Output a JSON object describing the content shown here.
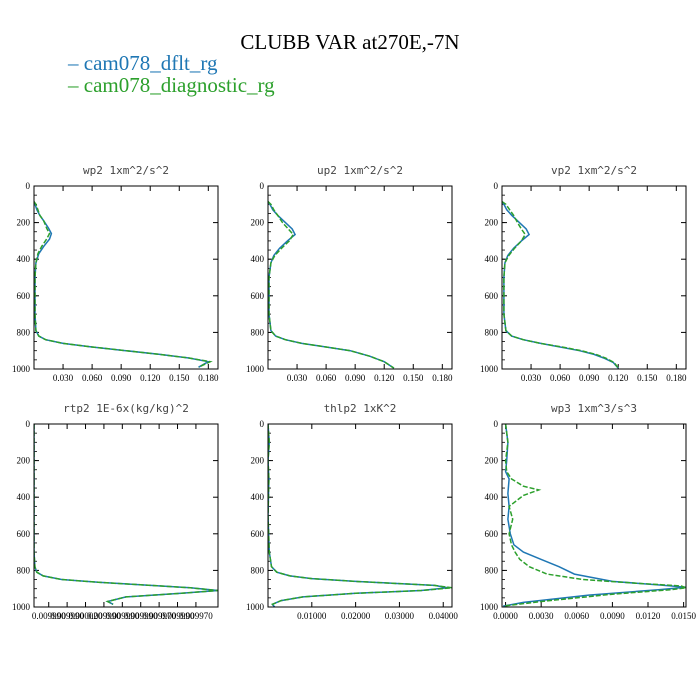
{
  "figure": {
    "title": "CLUBB VAR at270E,-7N",
    "legend": [
      {
        "name": "cam078_dflt_rg",
        "color": "#1f77b4"
      },
      {
        "name": "cam078_diagnostic_rg",
        "color": "#2ca02c"
      }
    ]
  },
  "chart_data": [
    {
      "type": "line",
      "title": "wp2   1xm^2/s^2",
      "xlim": [
        0,
        0.19
      ],
      "ylim": [
        1000,
        0
      ],
      "xticks": [
        0.03,
        0.06,
        0.09,
        0.12,
        0.15,
        0.18
      ],
      "xtick_labels": [
        "0.030",
        "0.060",
        "0.090",
        "0.120",
        "0.150",
        "0.180"
      ],
      "yticks": [
        0,
        200,
        400,
        600,
        800,
        1000
      ],
      "ytick_labels": [
        "0",
        "200",
        "400",
        "600",
        "800",
        "1000"
      ],
      "series": [
        {
          "name": "cam078_dflt_rg",
          "color": "#1f77b4",
          "dash": false,
          "x": [
            0.0,
            0.001,
            0.003,
            0.006,
            0.01,
            0.015,
            0.018,
            0.016,
            0.01,
            0.005,
            0.002,
            0.001,
            0.001,
            0.002,
            0.005,
            0.012,
            0.03,
            0.06,
            0.095,
            0.13,
            0.16,
            0.18,
            0.17
          ],
          "y": [
            85,
            100,
            130,
            160,
            190,
            230,
            260,
            290,
            330,
            370,
            420,
            500,
            700,
            790,
            820,
            840,
            860,
            880,
            900,
            920,
            940,
            960,
            990
          ]
        },
        {
          "name": "cam078_diagnostic_rg",
          "color": "#2ca02c",
          "dash": true,
          "x": [
            0.0,
            0.002,
            0.004,
            0.006,
            0.01,
            0.013,
            0.016,
            0.013,
            0.008,
            0.004,
            0.002,
            0.001,
            0.001,
            0.002,
            0.005,
            0.012,
            0.03,
            0.06,
            0.095,
            0.13,
            0.16,
            0.182,
            0.17
          ],
          "y": [
            85,
            100,
            130,
            160,
            190,
            230,
            260,
            290,
            330,
            370,
            420,
            500,
            700,
            790,
            820,
            840,
            860,
            880,
            900,
            920,
            940,
            960,
            990
          ]
        }
      ]
    },
    {
      "type": "line",
      "title": "up2   1xm^2/s^2",
      "xlim": [
        0,
        0.19
      ],
      "ylim": [
        1000,
        0
      ],
      "xticks": [
        0.03,
        0.06,
        0.09,
        0.12,
        0.15,
        0.18
      ],
      "xtick_labels": [
        "0.030",
        "0.060",
        "0.090",
        "0.120",
        "0.150",
        "0.180"
      ],
      "yticks": [
        0,
        200,
        400,
        600,
        800,
        1000
      ],
      "ytick_labels": [
        "0",
        "200",
        "400",
        "600",
        "800",
        "1000"
      ],
      "series": [
        {
          "name": "cam078_dflt_rg",
          "color": "#1f77b4",
          "dash": false,
          "x": [
            0.0,
            0.002,
            0.005,
            0.01,
            0.018,
            0.025,
            0.028,
            0.02,
            0.012,
            0.006,
            0.003,
            0.001,
            0.001,
            0.003,
            0.008,
            0.018,
            0.035,
            0.06,
            0.085,
            0.105,
            0.12,
            0.13
          ],
          "y": [
            85,
            100,
            130,
            160,
            200,
            235,
            265,
            300,
            340,
            380,
            420,
            500,
            700,
            790,
            820,
            840,
            860,
            880,
            900,
            930,
            960,
            995
          ]
        },
        {
          "name": "cam078_diagnostic_rg",
          "color": "#2ca02c",
          "dash": true,
          "x": [
            0.0,
            0.003,
            0.006,
            0.01,
            0.015,
            0.021,
            0.026,
            0.022,
            0.014,
            0.007,
            0.003,
            0.001,
            0.001,
            0.003,
            0.008,
            0.018,
            0.035,
            0.06,
            0.085,
            0.105,
            0.12,
            0.13
          ],
          "y": [
            85,
            100,
            130,
            160,
            200,
            235,
            265,
            300,
            340,
            380,
            420,
            500,
            700,
            790,
            820,
            840,
            860,
            880,
            900,
            930,
            960,
            995
          ]
        }
      ]
    },
    {
      "type": "line",
      "title": "vp2   1xm^2/s^2",
      "xlim": [
        0,
        0.19
      ],
      "ylim": [
        1000,
        0
      ],
      "xticks": [
        0.03,
        0.06,
        0.09,
        0.12,
        0.15,
        0.18
      ],
      "xtick_labels": [
        "0.030",
        "0.060",
        "0.090",
        "0.120",
        "0.150",
        "0.180"
      ],
      "yticks": [
        0,
        200,
        400,
        600,
        800,
        1000
      ],
      "ytick_labels": [
        "0",
        "200",
        "400",
        "600",
        "800",
        "1000"
      ],
      "series": [
        {
          "name": "cam078_dflt_rg",
          "color": "#1f77b4",
          "dash": false,
          "x": [
            0.0,
            0.002,
            0.005,
            0.01,
            0.018,
            0.025,
            0.028,
            0.02,
            0.012,
            0.006,
            0.003,
            0.002,
            0.002,
            0.004,
            0.01,
            0.022,
            0.04,
            0.06,
            0.08,
            0.095,
            0.105,
            0.115,
            0.12
          ],
          "y": [
            85,
            100,
            130,
            160,
            200,
            235,
            265,
            300,
            340,
            380,
            420,
            500,
            700,
            790,
            820,
            840,
            860,
            880,
            900,
            920,
            940,
            965,
            995
          ]
        },
        {
          "name": "cam078_diagnostic_rg",
          "color": "#2ca02c",
          "dash": true,
          "x": [
            0.0,
            0.004,
            0.008,
            0.012,
            0.016,
            0.02,
            0.024,
            0.02,
            0.013,
            0.007,
            0.003,
            0.002,
            0.002,
            0.004,
            0.01,
            0.022,
            0.04,
            0.062,
            0.082,
            0.097,
            0.107,
            0.116,
            0.12
          ],
          "y": [
            85,
            100,
            130,
            160,
            200,
            235,
            265,
            300,
            340,
            380,
            420,
            500,
            700,
            790,
            820,
            840,
            860,
            880,
            900,
            920,
            940,
            965,
            995
          ]
        }
      ]
    },
    {
      "type": "line",
      "title": "rtp2   1E-6x(kg/kg)^2",
      "xlim": [
        0,
        1
      ],
      "ylim": [
        1000,
        0
      ],
      "xticks": [
        0.08,
        0.18,
        0.28,
        0.38,
        0.48,
        0.58,
        0.68,
        0.78,
        0.88
      ],
      "xtick_labels": [
        "0.009990",
        "0.009990",
        "0.000020",
        "0.009990",
        "0.009990",
        "0.009990",
        "0.009970",
        "0.009990",
        "0.009970"
      ],
      "yticks": [
        0,
        200,
        400,
        600,
        800,
        1000
      ],
      "ytick_labels": [
        "0",
        "200",
        "400",
        "600",
        "800",
        "1000"
      ],
      "series": [
        {
          "name": "cam078_dflt_rg",
          "color": "#1f77b4",
          "dash": false,
          "x": [
            0.0,
            0.0,
            0.0,
            0.005,
            0.015,
            0.05,
            0.15,
            0.35,
            0.6,
            0.85,
            1.0,
            0.8,
            0.5,
            0.4,
            0.43
          ],
          "y": [
            0,
            300,
            700,
            780,
            810,
            830,
            850,
            865,
            880,
            895,
            910,
            925,
            945,
            970,
            985
          ]
        },
        {
          "name": "cam078_diagnostic_rg",
          "color": "#2ca02c",
          "dash": true,
          "x": [
            0.0,
            0.0,
            0.0,
            0.005,
            0.015,
            0.05,
            0.15,
            0.35,
            0.6,
            0.85,
            1.0,
            0.8,
            0.5,
            0.4,
            0.43
          ],
          "y": [
            0,
            300,
            700,
            780,
            810,
            830,
            850,
            865,
            880,
            895,
            910,
            925,
            945,
            970,
            985
          ]
        }
      ]
    },
    {
      "type": "line",
      "title": "thlp2   1xK^2",
      "xlim": [
        0,
        0.042
      ],
      "ylim": [
        1000,
        0
      ],
      "xticks": [
        0.01,
        0.02,
        0.03,
        0.04
      ],
      "xtick_labels": [
        "0.01000",
        "0.02000",
        "0.03000",
        "0.04000"
      ],
      "yticks": [
        0,
        200,
        400,
        600,
        800,
        1000
      ],
      "ytick_labels": [
        "0",
        "200",
        "400",
        "600",
        "800",
        "1000"
      ],
      "series": [
        {
          "name": "cam078_dflt_rg",
          "color": "#1f77b4",
          "dash": false,
          "x": [
            0.0,
            0.0003,
            0.0,
            0.0002,
            0.0,
            0.0003,
            0.0008,
            0.002,
            0.005,
            0.01,
            0.02,
            0.03,
            0.038,
            0.041,
            0.035,
            0.02,
            0.008,
            0.003,
            0.001,
            0.0015
          ],
          "y": [
            0,
            100,
            200,
            300,
            500,
            700,
            780,
            810,
            830,
            845,
            860,
            872,
            882,
            895,
            910,
            925,
            945,
            965,
            985,
            1000
          ]
        },
        {
          "name": "cam078_diagnostic_rg",
          "color": "#2ca02c",
          "dash": true,
          "x": [
            0.0,
            0.0003,
            0.0,
            0.0002,
            0.0,
            0.0003,
            0.0008,
            0.002,
            0.005,
            0.01,
            0.02,
            0.03,
            0.038,
            0.042,
            0.035,
            0.02,
            0.008,
            0.003,
            0.001,
            0.0015
          ],
          "y": [
            0,
            100,
            200,
            300,
            500,
            700,
            780,
            810,
            830,
            845,
            860,
            872,
            882,
            895,
            910,
            925,
            945,
            965,
            985,
            1000
          ]
        }
      ]
    },
    {
      "type": "line",
      "title": "wp3   1xm^3/s^3",
      "xlim": [
        -0.0003,
        0.0152
      ],
      "ylim": [
        1000,
        0
      ],
      "xticks": [
        0.0,
        0.003,
        0.006,
        0.009,
        0.012,
        0.015
      ],
      "xtick_labels": [
        "0.0000",
        "0.0030",
        "0.0060",
        "0.0090",
        "0.0120",
        "0.0150"
      ],
      "yticks": [
        0,
        200,
        400,
        600,
        800,
        1000
      ],
      "ytick_labels": [
        "0",
        "200",
        "400",
        "600",
        "800",
        "1000"
      ],
      "series": [
        {
          "name": "cam078_dflt_rg",
          "color": "#1f77b4",
          "dash": false,
          "x": [
            0.0,
            0.0002,
            0.0001,
            0.0,
            0.0003,
            0.0002,
            0.0003,
            0.0002,
            0.0004,
            0.0007,
            0.0015,
            0.003,
            0.0045,
            0.0058,
            0.009,
            0.013,
            0.0152,
            0.013,
            0.007,
            0.0015,
            -0.0002
          ],
          "y": [
            0,
            100,
            200,
            260,
            300,
            380,
            450,
            520,
            600,
            660,
            700,
            740,
            780,
            820,
            860,
            880,
            892,
            905,
            935,
            975,
            995
          ]
        },
        {
          "name": "cam078_diagnostic_rg",
          "color": "#2ca02c",
          "dash": true,
          "x": [
            0.0,
            0.0002,
            0.0,
            0.0001,
            0.0005,
            0.0015,
            0.0028,
            0.0015,
            0.0003,
            0.0006,
            0.0003,
            0.0005,
            0.0008,
            0.0012,
            0.002,
            0.0035,
            0.0065,
            0.011,
            0.0148,
            0.0152,
            0.014,
            0.009,
            0.003,
            -0.0002
          ],
          "y": [
            0,
            100,
            200,
            260,
            300,
            340,
            360,
            390,
            450,
            520,
            600,
            660,
            700,
            740,
            780,
            820,
            850,
            870,
            885,
            895,
            905,
            930,
            970,
            995
          ]
        }
      ]
    }
  ]
}
